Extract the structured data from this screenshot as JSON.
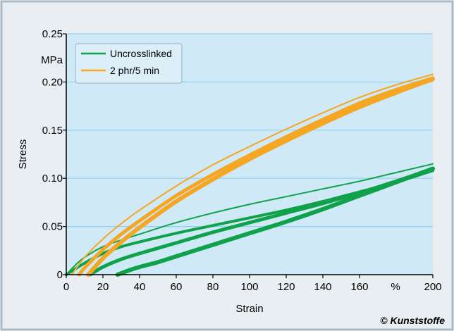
{
  "colors": {
    "frame_border": "#aab8c4",
    "frame_fill": "#e9eef2",
    "plot_fill": "#cfe9f7",
    "grid": "#8fd0ee",
    "axis": "#000000",
    "green": "#10a24a",
    "orange": "#f5a623",
    "legend_fill": "#dceef8",
    "legend_border": "#8fb3c9"
  },
  "chart_data": {
    "type": "line",
    "xlabel": "Strain",
    "ylabel": "Stress",
    "x_unit_label": "%",
    "y_unit_label": "MPa",
    "xlim": [
      0,
      200
    ],
    "ylim": [
      0,
      0.25
    ],
    "x_ticks": [
      {
        "value": 0,
        "label": "0"
      },
      {
        "value": 20,
        "label": "20"
      },
      {
        "value": 40,
        "label": "40"
      },
      {
        "value": 60,
        "label": "60"
      },
      {
        "value": 80,
        "label": "80"
      },
      {
        "value": 100,
        "label": "100"
      },
      {
        "value": 120,
        "label": "120"
      },
      {
        "value": 140,
        "label": "140"
      },
      {
        "value": 160,
        "label": "160"
      },
      {
        "value": 200,
        "label": "200"
      }
    ],
    "y_ticks": [
      {
        "value": 0,
        "label": "0"
      },
      {
        "value": 0.05,
        "label": "0.05"
      },
      {
        "value": 0.1,
        "label": "0.10"
      },
      {
        "value": 0.15,
        "label": "0.15"
      },
      {
        "value": 0.2,
        "label": "0.20"
      },
      {
        "value": 0.25,
        "label": "0.25"
      }
    ],
    "grid": "horizontal",
    "legend_position": "top-left",
    "series": [
      {
        "name": "Uncrosslinked",
        "color_key": "green",
        "curves": [
          {
            "x": [
              0,
              5,
              10,
              20,
              30,
              40,
              60,
              80,
              100,
              120,
              140,
              160,
              180,
              200
            ],
            "y": [
              0,
              0.01,
              0.018,
              0.029,
              0.036,
              0.042,
              0.054,
              0.064,
              0.073,
              0.081,
              0.089,
              0.097,
              0.106,
              0.115
            ],
            "width": 2
          },
          {
            "x": [
              0,
              10,
              20,
              30,
              40,
              60,
              80,
              100,
              120,
              140,
              160,
              180,
              200
            ],
            "y": [
              0,
              0.012,
              0.022,
              0.029,
              0.034,
              0.043,
              0.051,
              0.059,
              0.067,
              0.076,
              0.086,
              0.096,
              0.108
            ],
            "width": 4
          },
          {
            "x": [
              13,
              20,
              30,
              40,
              60,
              80,
              100,
              120,
              140,
              160,
              180,
              200
            ],
            "y": [
              0,
              0.008,
              0.016,
              0.022,
              0.033,
              0.044,
              0.054,
              0.064,
              0.074,
              0.085,
              0.097,
              0.11
            ],
            "width": 5
          },
          {
            "x": [
              28,
              35,
              40,
              50,
              60,
              80,
              100,
              120,
              140,
              160,
              180,
              200
            ],
            "y": [
              0,
              0.005,
              0.008,
              0.013,
              0.019,
              0.031,
              0.043,
              0.055,
              0.068,
              0.082,
              0.096,
              0.11
            ],
            "width": 6
          }
        ]
      },
      {
        "name": "2 phr/5 min",
        "color_key": "orange",
        "curves": [
          {
            "x": [
              3,
              10,
              20,
              30,
              40,
              60,
              80,
              100,
              120,
              140,
              160,
              180,
              200
            ],
            "y": [
              0,
              0.018,
              0.037,
              0.053,
              0.067,
              0.092,
              0.114,
              0.133,
              0.151,
              0.168,
              0.184,
              0.197,
              0.208
            ],
            "width": 2
          },
          {
            "x": [
              7,
              10,
              20,
              30,
              40,
              60,
              80,
              100,
              120,
              140,
              160,
              180,
              200
            ],
            "y": [
              0,
              0.007,
              0.026,
              0.042,
              0.056,
              0.082,
              0.104,
              0.124,
              0.143,
              0.161,
              0.178,
              0.192,
              0.204
            ],
            "width": 5
          },
          {
            "x": [
              12,
              20,
              30,
              40,
              60,
              80,
              100,
              120,
              140,
              160,
              180,
              200
            ],
            "y": [
              0,
              0.017,
              0.034,
              0.049,
              0.076,
              0.099,
              0.12,
              0.139,
              0.157,
              0.174,
              0.189,
              0.203
            ],
            "width": 6
          }
        ]
      }
    ]
  },
  "credit": "© Kunststoffe"
}
